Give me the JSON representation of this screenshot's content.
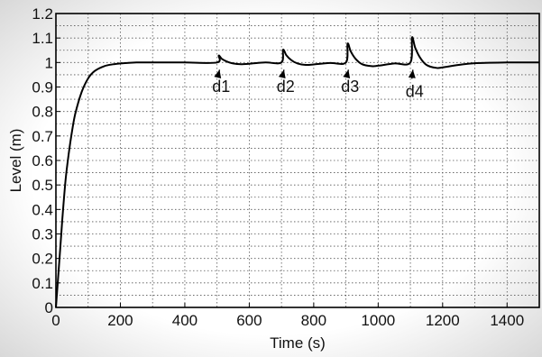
{
  "chart_data": {
    "type": "line",
    "title": "",
    "xlabel": "Time (s)",
    "ylabel": "Level (m)",
    "xlim": [
      0,
      1500
    ],
    "ylim": [
      0,
      1.2
    ],
    "xticks": [
      0,
      200,
      400,
      600,
      800,
      1000,
      1200,
      1400
    ],
    "xtick_labels": [
      "0",
      "200",
      "400",
      "600",
      "800",
      "1000",
      "1200",
      "1400"
    ],
    "yticks": [
      0,
      0.1,
      0.2,
      0.3,
      0.4,
      0.5,
      0.6,
      0.7,
      0.8,
      0.9,
      1,
      1.1,
      1.2
    ],
    "ytick_labels": [
      "0",
      "0.1",
      "0.2",
      "0.3",
      "0.4",
      "0.5",
      "0.6",
      "0.7",
      "0.8",
      "0.9",
      "1",
      "1.1",
      "1.2"
    ],
    "grid": true,
    "grid_style": "dotted",
    "legend": "none",
    "colors": {
      "line": "#000000",
      "grid": "#555555",
      "background": "#ffffff"
    },
    "series": [
      {
        "x": [
          0,
          10,
          20,
          30,
          40,
          50,
          60,
          80,
          100,
          120,
          150,
          180,
          210,
          250,
          300,
          400,
          500,
          505,
          515,
          530,
          550,
          575,
          600,
          650,
          700,
          705,
          715,
          730,
          750,
          775,
          800,
          850,
          900,
          905,
          915,
          930,
          950,
          980,
          1000,
          1050,
          1100,
          1105,
          1115,
          1130,
          1150,
          1180,
          1200,
          1250,
          1300,
          1400,
          1500
        ],
        "y": [
          0,
          0.18,
          0.36,
          0.52,
          0.63,
          0.72,
          0.79,
          0.88,
          0.935,
          0.965,
          0.985,
          0.993,
          0.997,
          1.0,
          1.0,
          1.0,
          1.0,
          1.028,
          1.015,
          1.004,
          0.996,
          0.993,
          0.995,
          1.0,
          1.0,
          1.052,
          1.03,
          1.01,
          0.996,
          0.99,
          0.992,
          0.998,
          1.0,
          1.077,
          1.045,
          1.015,
          0.993,
          0.985,
          0.987,
          0.996,
          1.0,
          1.102,
          1.06,
          1.02,
          0.99,
          0.978,
          0.98,
          0.99,
          0.997,
          1.0,
          1.0
        ]
      }
    ],
    "annotations": [
      {
        "text": "d1",
        "x": 505,
        "y": 1.0,
        "label_x": 513,
        "label_y": 0.88
      },
      {
        "text": "d2",
        "x": 705,
        "y": 1.0,
        "label_x": 713,
        "label_y": 0.88
      },
      {
        "text": "d3",
        "x": 905,
        "y": 1.0,
        "label_x": 913,
        "label_y": 0.88
      },
      {
        "text": "d4",
        "x": 1105,
        "y": 1.0,
        "label_x": 1113,
        "label_y": 0.86
      }
    ]
  }
}
